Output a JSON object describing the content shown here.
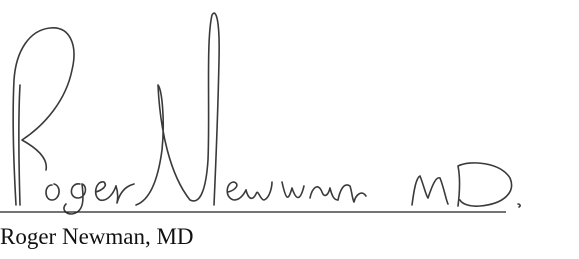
{
  "signature": {
    "name": "Roger Newman, MD"
  }
}
